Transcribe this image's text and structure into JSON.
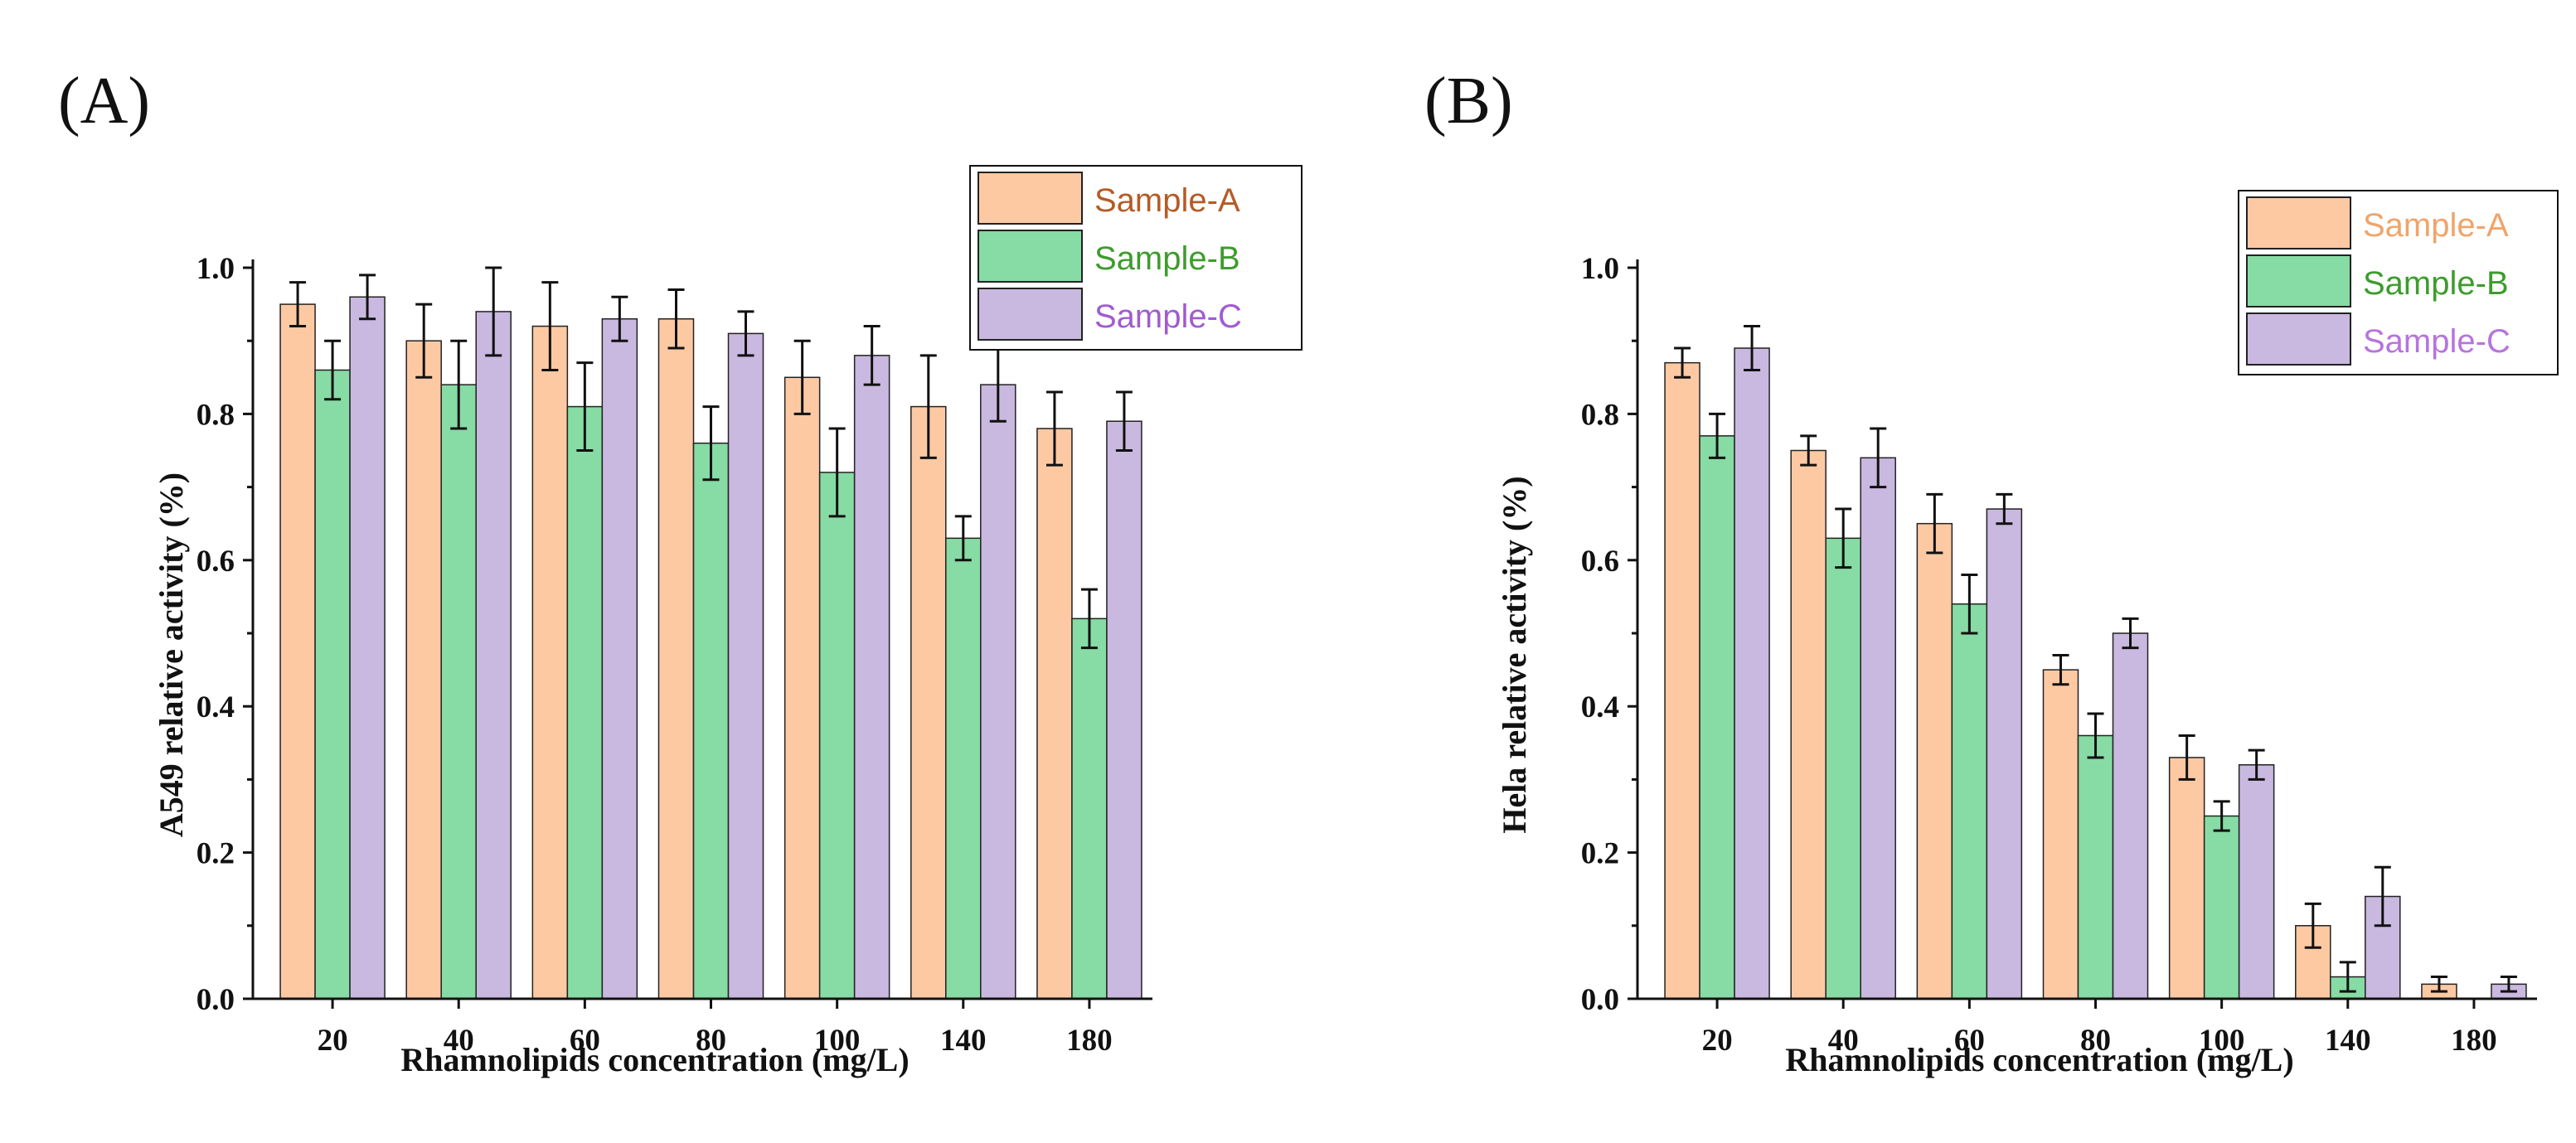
{
  "colors": {
    "sample_a_fill": "#fdc9a3",
    "sample_b_fill": "#87dba4",
    "sample_c_fill": "#c9b8df",
    "legend_a_text_left": "#b55b25",
    "legend_b_text_left": "#3d9c2d",
    "legend_c_text_left": "#a15bd1",
    "legend_a_text_right": "#f0a46a",
    "legend_b_text_right": "#3d9c2d",
    "legend_c_text_right": "#b774dd"
  },
  "chart_data": [
    {
      "panel": "(A)",
      "type": "bar",
      "title": "",
      "xlabel": "Rhamnolipids concentration (mg/L)",
      "ylabel": "A549 relative activity (%)",
      "ylim": [
        0,
        1.0
      ],
      "yticks": [
        "0.0",
        "0.2",
        "0.4",
        "0.6",
        "0.8",
        "1.0"
      ],
      "categories": [
        "20",
        "40",
        "60",
        "80",
        "100",
        "140",
        "180"
      ],
      "legend_position": "top-right",
      "series": [
        {
          "name": "Sample-A",
          "values": [
            0.95,
            0.9,
            0.92,
            0.93,
            0.85,
            0.81,
            0.78
          ],
          "errors": [
            0.03,
            0.05,
            0.06,
            0.04,
            0.05,
            0.07,
            0.05
          ]
        },
        {
          "name": "Sample-B",
          "values": [
            0.86,
            0.84,
            0.81,
            0.76,
            0.72,
            0.63,
            0.52
          ],
          "errors": [
            0.04,
            0.06,
            0.06,
            0.05,
            0.06,
            0.03,
            0.04
          ]
        },
        {
          "name": "Sample-C",
          "values": [
            0.96,
            0.94,
            0.93,
            0.91,
            0.88,
            0.84,
            0.79
          ],
          "errors": [
            0.03,
            0.06,
            0.03,
            0.03,
            0.04,
            0.05,
            0.04
          ]
        }
      ]
    },
    {
      "panel": "(B)",
      "type": "bar",
      "title": "",
      "xlabel": "Rhamnolipids concentration (mg/L)",
      "ylabel": "Hela relative activity (%)",
      "ylim": [
        0,
        1.0
      ],
      "yticks": [
        "0.0",
        "0.2",
        "0.4",
        "0.6",
        "0.8",
        "1.0"
      ],
      "categories": [
        "20",
        "40",
        "60",
        "80",
        "100",
        "140",
        "180"
      ],
      "legend_position": "top-right",
      "series": [
        {
          "name": "Sample-A",
          "values": [
            0.87,
            0.75,
            0.65,
            0.45,
            0.33,
            0.1,
            0.02
          ],
          "errors": [
            0.02,
            0.02,
            0.04,
            0.02,
            0.03,
            0.03,
            0.01
          ]
        },
        {
          "name": "Sample-B",
          "values": [
            0.77,
            0.63,
            0.54,
            0.36,
            0.25,
            0.03,
            0.0
          ],
          "errors": [
            0.03,
            0.04,
            0.04,
            0.03,
            0.02,
            0.02,
            0.0
          ]
        },
        {
          "name": "Sample-C",
          "values": [
            0.89,
            0.74,
            0.67,
            0.5,
            0.32,
            0.14,
            0.02
          ],
          "errors": [
            0.03,
            0.04,
            0.02,
            0.02,
            0.02,
            0.04,
            0.01
          ]
        }
      ]
    }
  ]
}
